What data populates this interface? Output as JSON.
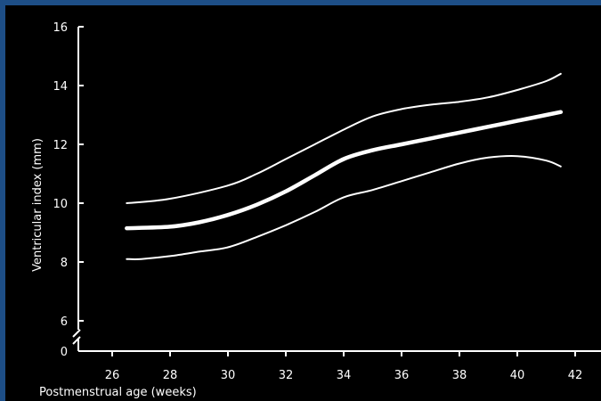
{
  "colors": {
    "frame": "#1d4e86",
    "background": "#000000",
    "ink": "#ffffff"
  },
  "chart_data": {
    "type": "line",
    "title": "",
    "xlabel": "Postmenstrual  age  (weeks)",
    "ylabel": "Ventricular  index  (mm)",
    "xlim": [
      25,
      42
    ],
    "ylim": [
      0,
      16
    ],
    "y_axis_break": [
      0,
      6
    ],
    "x_ticks": [
      26,
      28,
      30,
      32,
      34,
      36,
      38,
      40,
      42
    ],
    "y_ticks": [
      0,
      6,
      8,
      10,
      12,
      14,
      16
    ],
    "grid": false,
    "legend": "none",
    "series": [
      {
        "role": "upper",
        "x": [
          26.5,
          28,
          30,
          31,
          32,
          33,
          34,
          35,
          36,
          37,
          38,
          39,
          40,
          41,
          41.5
        ],
        "y": [
          10.0,
          10.15,
          10.6,
          11.0,
          11.5,
          12.0,
          12.5,
          12.95,
          13.2,
          13.35,
          13.45,
          13.6,
          13.85,
          14.15,
          14.4
        ]
      },
      {
        "role": "mean",
        "x": [
          26.5,
          28,
          29,
          30,
          31,
          32,
          33,
          34,
          35,
          36,
          37,
          38,
          39,
          40,
          41,
          41.5
        ],
        "y": [
          9.15,
          9.2,
          9.35,
          9.6,
          9.95,
          10.4,
          10.95,
          11.5,
          11.8,
          12.0,
          12.2,
          12.4,
          12.6,
          12.8,
          13.0,
          13.1
        ]
      },
      {
        "role": "lower",
        "x": [
          26.5,
          27,
          28,
          29,
          30,
          31,
          32,
          33,
          34,
          35,
          36,
          37,
          38,
          39,
          40,
          41,
          41.5
        ],
        "y": [
          8.1,
          8.1,
          8.2,
          8.35,
          8.5,
          8.85,
          9.25,
          9.7,
          10.2,
          10.45,
          10.75,
          11.05,
          11.35,
          11.55,
          11.6,
          11.45,
          11.25
        ]
      }
    ]
  }
}
